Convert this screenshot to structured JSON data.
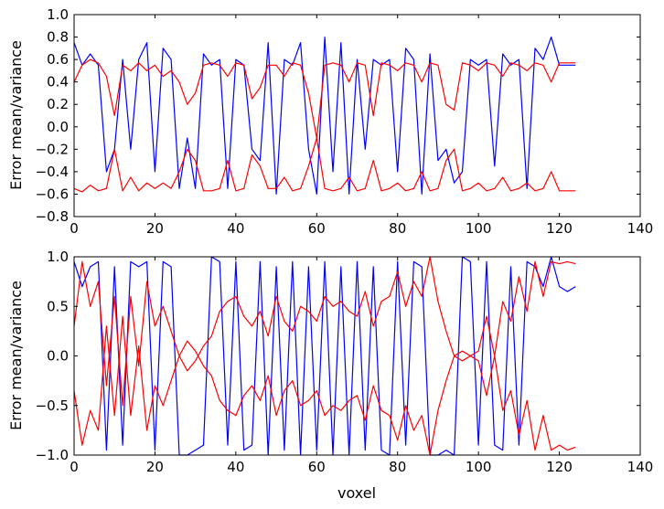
{
  "colors": {
    "mean_line": "#0000ff",
    "variance_lines": "#ff0000",
    "axes": "#000000",
    "background": "#ffffff"
  },
  "chart_data": [
    {
      "type": "line",
      "title": "",
      "xlabel": "",
      "ylabel": "Error mean/variance",
      "xlim": [
        0,
        140
      ],
      "ylim": [
        -0.8,
        1.0
      ],
      "x_ticks": [
        0,
        20,
        40,
        60,
        80,
        100,
        120,
        140
      ],
      "x_tick_labels": [
        "0",
        "20",
        "40",
        "60",
        "80",
        "100",
        "120",
        "140"
      ],
      "y_ticks": [
        -0.8,
        -0.6,
        -0.4,
        -0.2,
        0.0,
        0.2,
        0.4,
        0.6,
        0.8,
        1.0
      ],
      "y_tick_labels": [
        "−0.8",
        "−0.6",
        "−0.4",
        "−0.2",
        "0.0",
        "0.2",
        "0.4",
        "0.6",
        "0.8",
        "1.0"
      ],
      "grid": false,
      "legend": "none",
      "x": [
        0,
        2,
        4,
        6,
        8,
        10,
        12,
        14,
        16,
        18,
        20,
        22,
        24,
        26,
        28,
        30,
        32,
        34,
        36,
        38,
        40,
        42,
        44,
        46,
        48,
        50,
        52,
        54,
        56,
        58,
        60,
        62,
        64,
        66,
        68,
        70,
        72,
        74,
        76,
        78,
        80,
        82,
        84,
        86,
        88,
        90,
        92,
        94,
        96,
        98,
        100,
        102,
        104,
        106,
        108,
        110,
        112,
        114,
        116,
        118,
        120,
        122,
        124
      ],
      "series": [
        {
          "color": "#0000ff",
          "values": [
            0.75,
            0.55,
            0.65,
            0.55,
            -0.4,
            -0.2,
            0.6,
            -0.2,
            0.6,
            0.75,
            -0.4,
            0.7,
            0.6,
            -0.55,
            -0.1,
            -0.55,
            0.65,
            0.55,
            0.6,
            -0.55,
            0.6,
            0.55,
            -0.2,
            -0.3,
            0.75,
            -0.6,
            0.6,
            0.55,
            0.75,
            -0.2,
            -0.6,
            0.8,
            -0.4,
            0.75,
            -0.6,
            0.6,
            -0.2,
            0.6,
            0.55,
            0.6,
            -0.4,
            0.7,
            0.6,
            -0.6,
            0.65,
            -0.3,
            -0.2,
            -0.5,
            -0.4,
            0.6,
            0.55,
            0.6,
            -0.35,
            0.65,
            0.55,
            0.6,
            -0.55,
            0.7,
            0.6,
            0.8,
            0.55,
            0.55,
            0.55
          ]
        },
        {
          "color": "#ff0000",
          "values": [
            0.4,
            0.55,
            0.6,
            0.57,
            0.45,
            0.1,
            0.55,
            0.5,
            0.57,
            0.5,
            0.55,
            0.45,
            0.5,
            0.4,
            0.2,
            0.3,
            0.55,
            0.57,
            0.55,
            0.45,
            0.57,
            0.55,
            0.25,
            0.35,
            0.55,
            0.55,
            0.45,
            0.57,
            0.55,
            0.3,
            -0.1,
            0.55,
            0.57,
            0.55,
            0.4,
            0.57,
            0.55,
            0.1,
            0.57,
            0.55,
            0.5,
            0.57,
            0.55,
            0.4,
            0.57,
            0.55,
            0.2,
            0.15,
            0.57,
            0.55,
            0.5,
            0.57,
            0.55,
            0.45,
            0.57,
            0.55,
            0.5,
            0.57,
            0.55,
            0.4,
            0.57,
            0.57,
            0.57
          ]
        },
        {
          "color": "#ff0000",
          "values": [
            -0.55,
            -0.58,
            -0.52,
            -0.57,
            -0.55,
            -0.2,
            -0.57,
            -0.45,
            -0.57,
            -0.5,
            -0.55,
            -0.5,
            -0.55,
            -0.4,
            -0.2,
            -0.3,
            -0.57,
            -0.57,
            -0.55,
            -0.3,
            -0.57,
            -0.55,
            -0.25,
            -0.35,
            -0.55,
            -0.55,
            -0.45,
            -0.57,
            -0.55,
            -0.35,
            -0.1,
            -0.55,
            -0.57,
            -0.55,
            -0.45,
            -0.57,
            -0.55,
            -0.3,
            -0.57,
            -0.55,
            -0.5,
            -0.57,
            -0.55,
            -0.4,
            -0.57,
            -0.55,
            -0.3,
            -0.2,
            -0.57,
            -0.55,
            -0.5,
            -0.57,
            -0.55,
            -0.45,
            -0.57,
            -0.55,
            -0.5,
            -0.57,
            -0.55,
            -0.4,
            -0.57,
            -0.57,
            -0.57
          ]
        }
      ]
    },
    {
      "type": "line",
      "title": "",
      "xlabel": "voxel",
      "ylabel": "Error mean/variance",
      "xlim": [
        0,
        140
      ],
      "ylim": [
        -1.0,
        1.0
      ],
      "x_ticks": [
        0,
        20,
        40,
        60,
        80,
        100,
        120,
        140
      ],
      "x_tick_labels": [
        "0",
        "20",
        "40",
        "60",
        "80",
        "100",
        "120",
        "140"
      ],
      "y_ticks": [
        -1.0,
        -0.5,
        0.0,
        0.5,
        1.0
      ],
      "y_tick_labels": [
        "−1.0",
        "−0.5",
        "0.0",
        "0.5",
        "1.0"
      ],
      "grid": false,
      "legend": "none",
      "x": [
        0,
        2,
        4,
        6,
        8,
        10,
        12,
        14,
        16,
        18,
        20,
        22,
        24,
        26,
        28,
        30,
        32,
        34,
        36,
        38,
        40,
        42,
        44,
        46,
        48,
        50,
        52,
        54,
        56,
        58,
        60,
        62,
        64,
        66,
        68,
        70,
        72,
        74,
        76,
        78,
        80,
        82,
        84,
        86,
        88,
        90,
        92,
        94,
        96,
        98,
        100,
        102,
        104,
        106,
        108,
        110,
        112,
        114,
        116,
        118,
        120,
        122,
        124
      ],
      "series": [
        {
          "color": "#0000ff",
          "values": [
            0.95,
            0.7,
            0.9,
            0.95,
            -0.95,
            0.9,
            -0.9,
            0.95,
            0.9,
            0.95,
            -0.95,
            0.95,
            0.9,
            -1.0,
            -1.0,
            -0.95,
            -0.9,
            1.0,
            0.95,
            -0.9,
            0.95,
            -0.95,
            -0.9,
            0.95,
            -1.0,
            0.9,
            -0.95,
            0.95,
            -1.0,
            0.9,
            -0.95,
            0.95,
            -1.0,
            0.9,
            -1.0,
            0.95,
            -0.95,
            0.9,
            -0.95,
            -1.0,
            0.95,
            -0.9,
            0.95,
            0.9,
            -1.0,
            -1.0,
            -0.95,
            -1.0,
            1.0,
            0.95,
            -0.9,
            0.95,
            -0.9,
            -0.95,
            0.9,
            -0.9,
            0.95,
            0.9,
            0.7,
            1.0,
            0.7,
            0.65,
            0.7
          ]
        },
        {
          "color": "#ff0000",
          "values": [
            0.3,
            0.95,
            0.5,
            0.75,
            -0.3,
            0.6,
            -0.5,
            0.6,
            -0.1,
            0.75,
            0.3,
            0.5,
            0.25,
            0.0,
            -0.15,
            -0.05,
            0.1,
            0.2,
            0.45,
            0.55,
            0.6,
            0.4,
            0.3,
            0.45,
            0.2,
            0.6,
            0.35,
            0.25,
            0.5,
            0.45,
            0.35,
            0.6,
            0.5,
            0.55,
            0.45,
            0.4,
            0.65,
            0.3,
            0.55,
            0.6,
            0.85,
            0.5,
            0.75,
            0.6,
            1.0,
            0.55,
            0.25,
            0.0,
            0.05,
            0.0,
            0.05,
            0.4,
            0.0,
            0.55,
            0.35,
            0.8,
            0.45,
            0.95,
            0.6,
            0.95,
            0.93,
            0.95,
            0.93
          ]
        },
        {
          "color": "#ff0000",
          "values": [
            -0.35,
            -0.9,
            -0.55,
            -0.75,
            0.3,
            -0.6,
            0.4,
            -0.6,
            0.1,
            -0.75,
            -0.3,
            -0.5,
            -0.25,
            0.0,
            0.15,
            0.05,
            -0.1,
            -0.2,
            -0.45,
            -0.55,
            -0.6,
            -0.4,
            -0.3,
            -0.45,
            -0.2,
            -0.6,
            -0.35,
            -0.25,
            -0.5,
            -0.45,
            -0.35,
            -0.6,
            -0.5,
            -0.55,
            -0.45,
            -0.4,
            -0.65,
            -0.3,
            -0.55,
            -0.6,
            -0.85,
            -0.5,
            -0.75,
            -0.6,
            -1.0,
            -0.55,
            -0.25,
            0.0,
            -0.05,
            0.0,
            -0.05,
            -0.4,
            0.0,
            -0.55,
            -0.35,
            -0.8,
            -0.45,
            -0.95,
            -0.6,
            -0.95,
            -0.9,
            -0.95,
            -0.92
          ]
        }
      ]
    }
  ]
}
